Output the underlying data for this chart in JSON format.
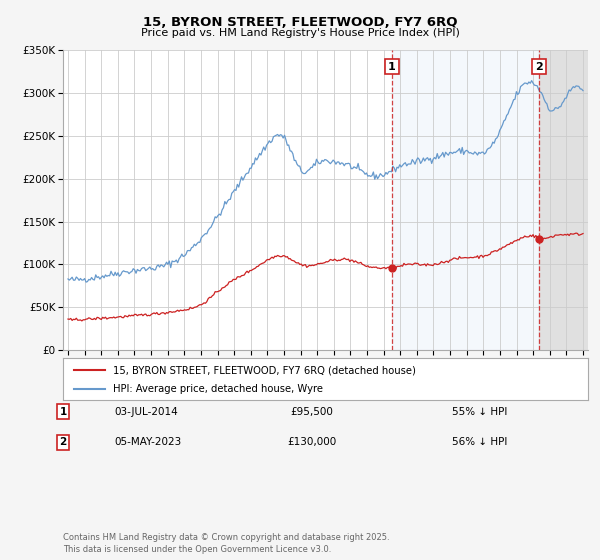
{
  "title": "15, BYRON STREET, FLEETWOOD, FY7 6RQ",
  "subtitle": "Price paid vs. HM Land Registry's House Price Index (HPI)",
  "ylim": [
    0,
    350000
  ],
  "xlim_start": 1994.7,
  "xlim_end": 2026.3,
  "yticks": [
    0,
    50000,
    100000,
    150000,
    200000,
    250000,
    300000,
    350000
  ],
  "ytick_labels": [
    "£0",
    "£50K",
    "£100K",
    "£150K",
    "£200K",
    "£250K",
    "£300K",
    "£350K"
  ],
  "xticks": [
    1995,
    1996,
    1997,
    1998,
    1999,
    2000,
    2001,
    2002,
    2003,
    2004,
    2005,
    2006,
    2007,
    2008,
    2009,
    2010,
    2011,
    2012,
    2013,
    2014,
    2015,
    2016,
    2017,
    2018,
    2019,
    2020,
    2021,
    2022,
    2023,
    2024,
    2025,
    2026
  ],
  "hpi_color": "#6699cc",
  "price_color": "#cc2222",
  "vline_color": "#cc2222",
  "marker1_x": 2014.5,
  "marker1_y": 95500,
  "marker2_x": 2023.35,
  "marker2_y": 130000,
  "label1_date": "03-JUL-2014",
  "label1_price": "£95,500",
  "label1_hpi": "55% ↓ HPI",
  "label2_date": "05-MAY-2023",
  "label2_price": "£130,000",
  "label2_hpi": "56% ↓ HPI",
  "legend_line1": "15, BYRON STREET, FLEETWOOD, FY7 6RQ (detached house)",
  "legend_line2": "HPI: Average price, detached house, Wyre",
  "footnote": "Contains HM Land Registry data © Crown copyright and database right 2025.\nThis data is licensed under the Open Government Licence v3.0.",
  "background_color": "#f5f5f5",
  "plot_bg_color": "#ffffff",
  "grid_color": "#cccccc",
  "hpi_key_years": [
    1995,
    1997,
    1999,
    2001,
    2003,
    2005,
    2007,
    2008,
    2009,
    2010,
    2011,
    2012,
    2013,
    2014,
    2015,
    2016,
    2017,
    2018,
    2019,
    2020,
    2021,
    2022,
    2023.0,
    2023.5,
    2024,
    2025,
    2026
  ],
  "hpi_key_vals": [
    82000,
    86000,
    93000,
    100000,
    130000,
    185000,
    240000,
    248000,
    210000,
    218000,
    220000,
    215000,
    205000,
    205000,
    215000,
    220000,
    225000,
    230000,
    232000,
    230000,
    255000,
    298000,
    312000,
    300000,
    282000,
    296000,
    302000
  ],
  "price_key_years": [
    1995,
    1997,
    1999,
    2001,
    2002,
    2003,
    2004,
    2005,
    2006,
    2007,
    2008,
    2009,
    2010,
    2011,
    2012,
    2013,
    2014.4,
    2014.6,
    2015,
    2016,
    2017,
    2018,
    2019,
    2020,
    2021,
    2022,
    2023.2,
    2023.4,
    2024,
    2025,
    2026
  ],
  "price_key_vals": [
    35000,
    37000,
    40000,
    44000,
    47000,
    53000,
    68000,
    82000,
    93000,
    105000,
    110000,
    100000,
    100000,
    105000,
    105000,
    98000,
    95500,
    95500,
    98000,
    100000,
    100000,
    105000,
    108000,
    110000,
    118000,
    128000,
    132000,
    130000,
    132000,
    135000,
    136000
  ]
}
